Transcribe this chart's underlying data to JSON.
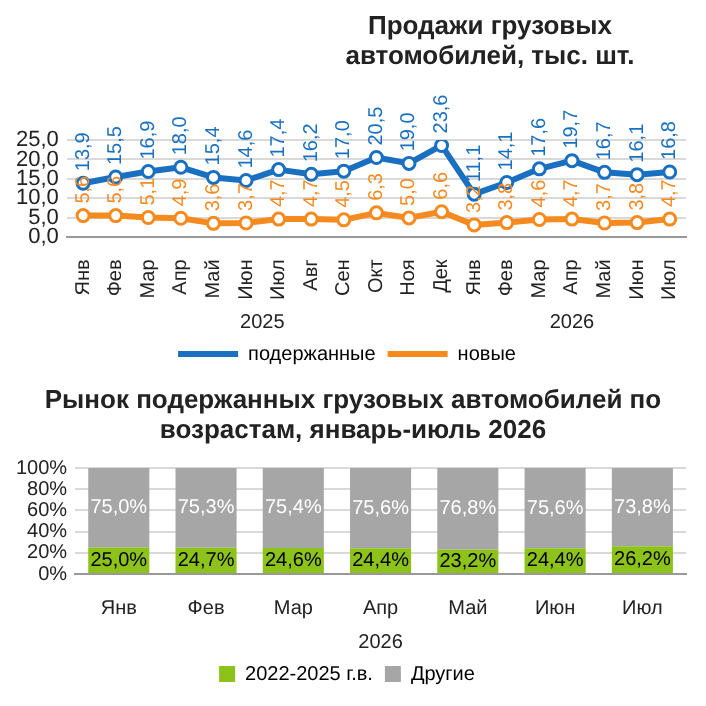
{
  "chart_data": [
    {
      "type": "line",
      "title": "Продажи грузовых автомобилей, тыс. шт.",
      "categories": [
        "Янв",
        "Фев",
        "Мар",
        "Апр",
        "Май",
        "Июн",
        "Июл",
        "Авг",
        "Сен",
        "Окт",
        "Ноя",
        "Дек",
        "Янв",
        "Фев",
        "Мар",
        "Апр",
        "Май",
        "Июн",
        "Июл"
      ],
      "series": [
        {
          "name": "подержанные",
          "color": "#1a70c0",
          "values": [
            13.9,
            15.5,
            16.9,
            18.0,
            15.4,
            14.6,
            17.4,
            16.2,
            17.0,
            20.5,
            19.0,
            23.6,
            11.1,
            14.1,
            17.6,
            19.7,
            16.7,
            16.1,
            16.8
          ],
          "value_labels": [
            "13,9",
            "15,5",
            "16,9",
            "18,0",
            "15,4",
            "14,6",
            "17,4",
            "16,2",
            "17,0",
            "20,5",
            "19,0",
            "23,6",
            "11,1",
            "14,1",
            "17,6",
            "19,7",
            "16,7",
            "16,1",
            "16,8"
          ]
        },
        {
          "name": "новые",
          "color": "#f58a1f",
          "values": [
            5.6,
            5.6,
            5.1,
            4.9,
            3.6,
            3.7,
            4.7,
            4.7,
            4.5,
            6.3,
            5.0,
            6.6,
            3.2,
            3.8,
            4.6,
            4.7,
            3.7,
            3.8,
            4.7
          ],
          "value_labels": [
            "5,6",
            "5,6",
            "5,1",
            "4,9",
            "3,6",
            "3,7",
            "4,7",
            "4,7",
            "4,5",
            "6,3",
            "5,0",
            "6,6",
            "3,2",
            "3,8",
            "4,6",
            "4,7",
            "3,7",
            "3,8",
            "4,7"
          ]
        }
      ],
      "ylim": [
        0,
        25
      ],
      "yticks": [
        {
          "value": 0,
          "label": "0,0"
        },
        {
          "value": 5,
          "label": "5,0"
        },
        {
          "value": 10,
          "label": "10,0"
        },
        {
          "value": 15,
          "label": "15,0"
        },
        {
          "value": 20,
          "label": "20,0"
        },
        {
          "value": 25,
          "label": "25,0"
        }
      ],
      "grid": "y",
      "legend": "bottom",
      "marker": "circle",
      "annotations": [
        "2025",
        "2026"
      ]
    },
    {
      "type": "bar",
      "stacked": true,
      "title": "Рынок подержанных грузовых автомобилей по возрастам, январь-июль 2026",
      "categories": [
        "Янв",
        "Фев",
        "Мар",
        "Апр",
        "Май",
        "Июн",
        "Июл"
      ],
      "series": [
        {
          "name": "2022-2025 г.в.",
          "color": "#8cc21a",
          "values": [
            25.0,
            24.7,
            24.6,
            24.4,
            23.2,
            24.4,
            26.2
          ],
          "value_labels": [
            "25,0%",
            "24,7%",
            "24,6%",
            "24,4%",
            "23,2%",
            "24,4%",
            "26,2%"
          ]
        },
        {
          "name": "Другие",
          "color": "#a6a6a6",
          "values": [
            75.0,
            75.3,
            75.4,
            75.6,
            76.8,
            75.6,
            73.8
          ],
          "value_labels": [
            "75,0%",
            "75,3%",
            "75,4%",
            "75,6%",
            "76,8%",
            "75,6%",
            "73,8%"
          ]
        }
      ],
      "ylim": [
        0,
        100
      ],
      "yticks": [
        {
          "value": 0,
          "label": "0%"
        },
        {
          "value": 20,
          "label": "20%"
        },
        {
          "value": 40,
          "label": "40%"
        },
        {
          "value": 60,
          "label": "60%"
        },
        {
          "value": 80,
          "label": "80%"
        },
        {
          "value": 100,
          "label": "100%"
        }
      ],
      "grid": "y",
      "legend": "bottom",
      "annotations": [
        "2026"
      ]
    }
  ]
}
